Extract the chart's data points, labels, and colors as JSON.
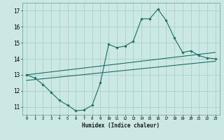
{
  "xlabel": "Humidex (Indice chaleur)",
  "ylabel": "",
  "bg_color": "#cce8e4",
  "grid_color": "#aad0cc",
  "line_color": "#1a6e64",
  "xlim": [
    -0.5,
    23.5
  ],
  "ylim": [
    10.5,
    17.5
  ],
  "xticks": [
    0,
    1,
    2,
    3,
    4,
    5,
    6,
    7,
    8,
    9,
    10,
    11,
    12,
    13,
    14,
    15,
    16,
    17,
    18,
    19,
    20,
    21,
    22,
    23
  ],
  "yticks": [
    11,
    12,
    13,
    14,
    15,
    16,
    17
  ],
  "main_x": [
    0,
    1,
    2,
    3,
    4,
    5,
    6,
    7,
    8,
    9,
    10,
    11,
    12,
    13,
    14,
    15,
    16,
    17,
    18,
    19,
    20,
    21,
    22,
    23
  ],
  "main_y": [
    13.0,
    12.8,
    12.4,
    11.9,
    11.4,
    11.1,
    10.75,
    10.8,
    11.1,
    12.5,
    14.9,
    14.7,
    14.8,
    15.1,
    16.5,
    16.5,
    17.1,
    16.4,
    15.3,
    14.4,
    14.5,
    14.2,
    14.05,
    14.0
  ],
  "line2_x": [
    0,
    23
  ],
  "line2_y": [
    13.0,
    14.4
  ],
  "line3_x": [
    0,
    23
  ],
  "line3_y": [
    12.65,
    13.85
  ]
}
